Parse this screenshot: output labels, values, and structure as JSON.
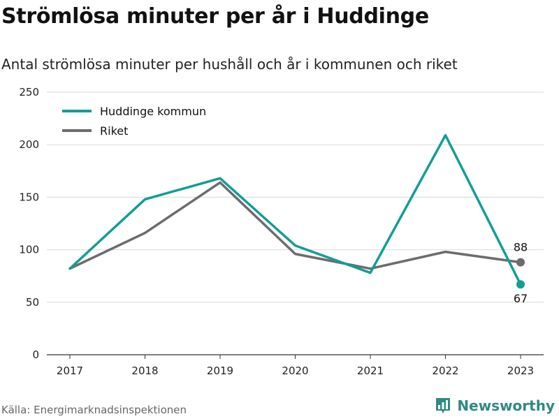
{
  "header": {
    "title": "Strömlösa minuter per år i Huddinge",
    "subtitle": "Antal strömlösa minuter per hushåll och år i kommunen och riket"
  },
  "footer": {
    "source": "Källa: Energimarknadsinspektionen",
    "brand": "Newsworthy",
    "brand_icon": "bar-chart-logo-icon"
  },
  "colors": {
    "huddinge": "#139e94",
    "riket": "#6c6b70",
    "grid": "#d9d9d9",
    "axis": "#333333",
    "brand": "#2f8a82"
  },
  "chart_data": {
    "type": "line",
    "title": "Strömlösa minuter per år i Huddinge",
    "subtitle": "Antal strömlösa minuter per hushåll och år i kommunen och riket",
    "xlabel": "",
    "ylabel": "",
    "x": [
      "2017",
      "2018",
      "2019",
      "2020",
      "2021",
      "2022",
      "2023"
    ],
    "ylim": [
      0,
      250
    ],
    "yticks": [
      0,
      50,
      100,
      150,
      200,
      250
    ],
    "grid": true,
    "legend_position": "top-left",
    "series": [
      {
        "name": "Huddinge kommun",
        "color": "#139e94",
        "values": [
          82,
          148,
          168,
          104,
          78,
          209,
          67
        ],
        "end_label": "67"
      },
      {
        "name": "Riket",
        "color": "#6c6b70",
        "values": [
          82,
          116,
          164,
          96,
          82,
          98,
          88
        ],
        "end_label": "88"
      }
    ]
  }
}
